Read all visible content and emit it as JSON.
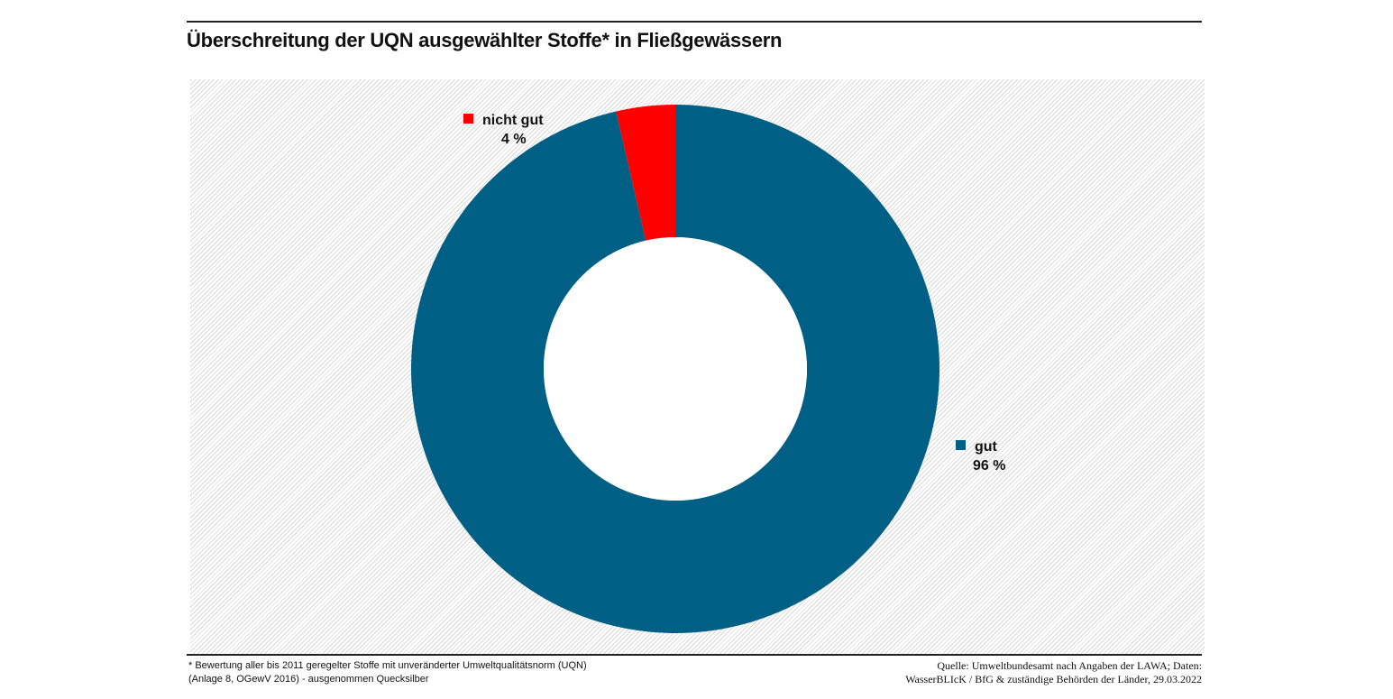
{
  "chart_data": {
    "type": "pie",
    "variant": "donut",
    "title": "Überschreitung der UQN ausgewählter Stoffe* in Fließgewässern",
    "slices": [
      {
        "label": "gut",
        "value": 96.4,
        "value_label": "96 %",
        "color": "#005f84"
      },
      {
        "label": "nicht gut",
        "value": 3.6,
        "value_label": "4 %",
        "color": "#ff0000"
      }
    ],
    "footnote": [
      "* Bewertung aller bis 2011 geregelter Stoffe mit unveränderter Umweltqualitätsnorm (UQN)",
      "(Anlage 8, OGewV 2016) - ausgenommen Quecksilber"
    ],
    "source": [
      "Quelle: Umweltbundesamt nach Angaben der LAWA; Daten:",
      "WasserBLIcK / BfG & zuständige Behörden der Länder, 29.03.2022"
    ]
  }
}
